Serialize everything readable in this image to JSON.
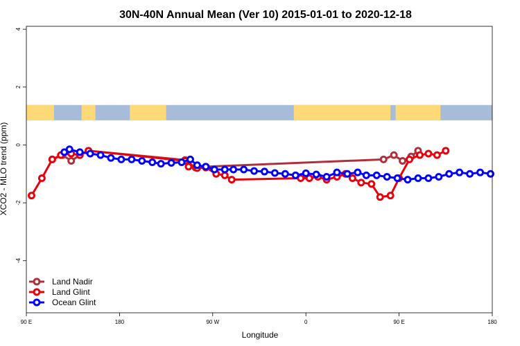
{
  "chart_data": {
    "type": "line",
    "title": "30N-40N Annual Mean (Ver 10)   2015-01-01 to 2020-12-18",
    "xlabel": "Longitude",
    "ylabel": "XCO2 - MLO trend (ppm)",
    "xlim": [
      -90,
      180
    ],
    "ylim": [
      -5.8,
      4.1
    ],
    "x_ticks": [
      {
        "value": -90,
        "label": "90 E"
      },
      {
        "value": -36,
        "label": "180"
      },
      {
        "value": 18,
        "label": "90 W"
      },
      {
        "value": 72,
        "label": "0"
      },
      {
        "value": 126,
        "label": "90 E"
      },
      {
        "value": 180,
        "label": "180"
      }
    ],
    "y_ticks": [
      {
        "value": -4,
        "label": "-4"
      },
      {
        "value": -2,
        "label": "-2"
      },
      {
        "value": 0,
        "label": "0"
      },
      {
        "value": 2,
        "label": "2"
      },
      {
        "value": 4,
        "label": "4"
      }
    ],
    "grid": false,
    "legend_position": "bottom-left",
    "land_mask_band": {
      "ymin": 0.85,
      "ymax": 1.38,
      "ocean_color": "#a6bcd9",
      "land_color": "#fdd977"
    },
    "land_longitudes": [
      [
        -90,
        -74
      ],
      [
        -58,
        -50
      ],
      [
        -30,
        -9
      ],
      [
        65,
        121
      ],
      [
        124,
        150
      ]
    ],
    "series": [
      {
        "name": "Land Nadir",
        "color": "#b0303a",
        "x": [
          -75,
          -69,
          -64,
          -59,
          -54,
          2,
          8,
          14,
          117,
          123,
          128,
          133,
          137
        ],
        "y": [
          -0.5,
          -0.35,
          -0.55,
          -0.35,
          -0.2,
          -0.52,
          -0.78,
          -0.75,
          -0.5,
          -0.35,
          -0.55,
          -0.4,
          -0.2
        ]
      },
      {
        "name": "Land Glint",
        "color": "#e8000b",
        "x": [
          -87,
          -81,
          -75,
          -70,
          -64,
          -59,
          -54,
          2,
          4,
          9,
          14,
          20,
          25,
          29,
          69,
          74,
          79,
          84,
          90,
          95,
          99,
          104,
          110,
          115,
          121,
          126,
          132,
          138,
          143,
          148,
          153
        ],
        "y": [
          -1.75,
          -1.15,
          -0.5,
          -0.35,
          -0.3,
          -0.35,
          -0.2,
          -0.55,
          -0.75,
          -0.8,
          -0.78,
          -1.0,
          -1.05,
          -1.2,
          -1.15,
          -1.15,
          -1.1,
          -1.2,
          -1.1,
          -1.0,
          -1.15,
          -1.3,
          -1.35,
          -1.8,
          -1.75,
          -1.15,
          -0.5,
          -0.35,
          -0.3,
          -0.35,
          -0.2
        ]
      },
      {
        "name": "Ocean Glint",
        "color": "#0000ff",
        "x": [
          -68,
          -65,
          -59,
          -53,
          -47,
          -41,
          -35,
          -29,
          -23,
          -17,
          -12,
          -6,
          0,
          5,
          9,
          14,
          19,
          25,
          30,
          36,
          42,
          48,
          54,
          60,
          66,
          72,
          78,
          84,
          90,
          96,
          102,
          107,
          113,
          119,
          125,
          131,
          137,
          143,
          149,
          155,
          161,
          167,
          173,
          179
        ],
        "y": [
          -0.25,
          -0.15,
          -0.25,
          -0.3,
          -0.35,
          -0.45,
          -0.5,
          -0.5,
          -0.55,
          -0.6,
          -0.65,
          -0.62,
          -0.6,
          -0.5,
          -0.7,
          -0.75,
          -0.85,
          -0.85,
          -0.85,
          -0.85,
          -0.9,
          -0.92,
          -0.97,
          -1.0,
          -1.05,
          -0.98,
          -1.02,
          -1.1,
          -0.95,
          -1.0,
          -0.95,
          -1.05,
          -1.05,
          -1.1,
          -1.15,
          -1.2,
          -1.15,
          -1.15,
          -1.1,
          -1.0,
          -0.95,
          -1.0,
          -0.95,
          -1.0
        ]
      }
    ]
  }
}
